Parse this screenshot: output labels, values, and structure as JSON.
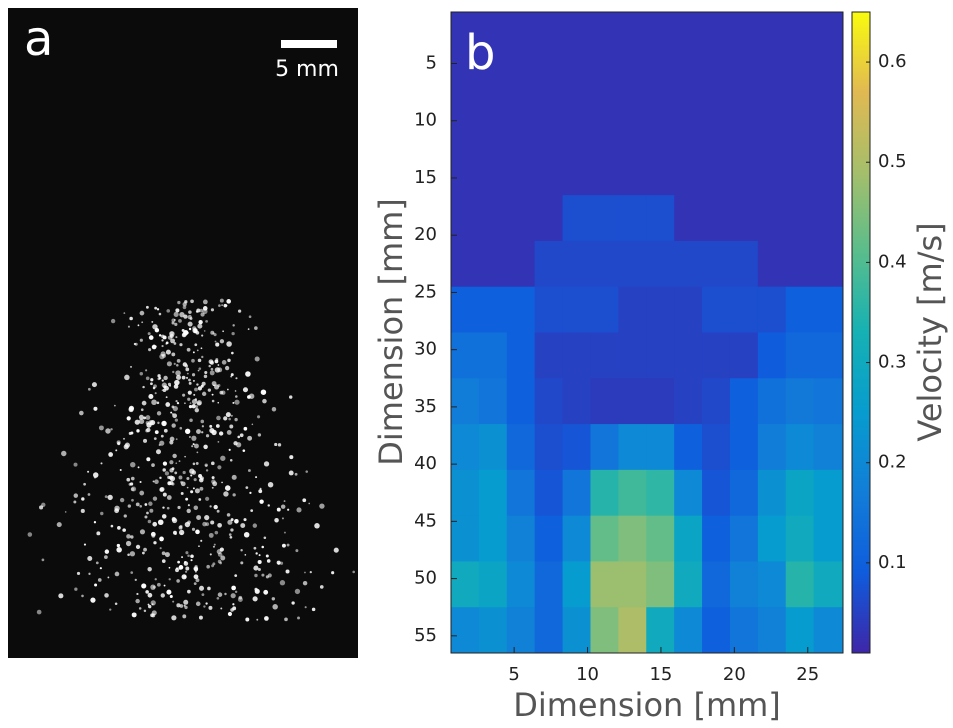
{
  "panel_a": {
    "label": "a",
    "scale_bar_label": "5 mm"
  },
  "chart_data": {
    "type": "heatmap",
    "panel_label": "b",
    "xlabel": "Dimension [mm]",
    "ylabel": "Dimension [mm]",
    "colorbar_label": "Velocity [m/s]",
    "colormap": "parula",
    "xbins": [
      0.7,
      2.6,
      4.5,
      6.4,
      8.3,
      10.2,
      12.1,
      14.0,
      15.9,
      17.8,
      19.7,
      21.6,
      23.5,
      25.4,
      27.4
    ],
    "ybins": [
      0.5,
      4.5,
      8.5,
      12.5,
      16.5,
      20.5,
      24.5,
      28.5,
      32.5,
      36.5,
      40.5,
      44.5,
      48.5,
      52.5,
      56.5
    ],
    "z": [
      [
        0.03,
        0.03,
        0.03,
        0.03,
        0.03,
        0.03,
        0.03,
        0.03,
        0.03,
        0.03,
        0.03,
        0.03,
        0.03,
        0.03
      ],
      [
        0.03,
        0.03,
        0.03,
        0.03,
        0.03,
        0.03,
        0.03,
        0.03,
        0.03,
        0.03,
        0.03,
        0.03,
        0.03,
        0.03
      ],
      [
        0.03,
        0.03,
        0.03,
        0.03,
        0.03,
        0.03,
        0.03,
        0.03,
        0.03,
        0.03,
        0.03,
        0.03,
        0.03,
        0.03
      ],
      [
        0.03,
        0.03,
        0.03,
        0.03,
        0.03,
        0.03,
        0.03,
        0.03,
        0.03,
        0.03,
        0.03,
        0.03,
        0.03,
        0.03
      ],
      [
        0.03,
        0.03,
        0.03,
        0.03,
        0.07,
        0.07,
        0.07,
        0.07,
        0.03,
        0.03,
        0.03,
        0.03,
        0.03,
        0.03
      ],
      [
        0.03,
        0.03,
        0.03,
        0.06,
        0.06,
        0.06,
        0.06,
        0.06,
        0.06,
        0.06,
        0.06,
        0.03,
        0.03,
        0.03
      ],
      [
        0.1,
        0.1,
        0.1,
        0.07,
        0.07,
        0.07,
        0.05,
        0.05,
        0.05,
        0.07,
        0.07,
        0.07,
        0.1,
        0.1
      ],
      [
        0.14,
        0.14,
        0.1,
        0.05,
        0.05,
        0.05,
        0.05,
        0.05,
        0.05,
        0.05,
        0.05,
        0.09,
        0.12,
        0.12
      ],
      [
        0.17,
        0.15,
        0.1,
        0.06,
        0.05,
        0.04,
        0.04,
        0.04,
        0.05,
        0.06,
        0.1,
        0.14,
        0.16,
        0.15
      ],
      [
        0.2,
        0.22,
        0.12,
        0.07,
        0.08,
        0.15,
        0.2,
        0.2,
        0.1,
        0.07,
        0.1,
        0.17,
        0.2,
        0.18
      ],
      [
        0.22,
        0.25,
        0.15,
        0.08,
        0.15,
        0.35,
        0.38,
        0.36,
        0.2,
        0.08,
        0.12,
        0.22,
        0.28,
        0.25
      ],
      [
        0.22,
        0.25,
        0.18,
        0.1,
        0.2,
        0.42,
        0.45,
        0.42,
        0.28,
        0.1,
        0.15,
        0.25,
        0.3,
        0.25
      ],
      [
        0.3,
        0.28,
        0.2,
        0.12,
        0.25,
        0.48,
        0.48,
        0.45,
        0.3,
        0.12,
        0.18,
        0.2,
        0.35,
        0.3
      ],
      [
        0.2,
        0.22,
        0.18,
        0.12,
        0.22,
        0.45,
        0.5,
        0.3,
        0.2,
        0.1,
        0.15,
        0.18,
        0.25,
        0.2
      ]
    ],
    "xlim": [
      0.7,
      27.4
    ],
    "ylim": [
      0.5,
      56.5
    ],
    "y_reversed": true,
    "xticks": [
      5,
      10,
      15,
      20,
      25
    ],
    "yticks": [
      5,
      10,
      15,
      20,
      25,
      30,
      35,
      40,
      45,
      50,
      55
    ],
    "clim": [
      0.01,
      0.65
    ],
    "cticks": [
      0.1,
      0.2,
      0.3,
      0.4,
      0.5,
      0.6
    ]
  }
}
